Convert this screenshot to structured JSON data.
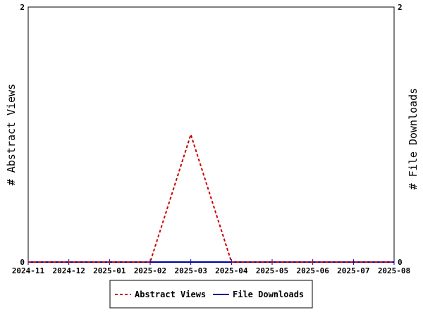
{
  "chart_data": {
    "type": "line",
    "title": "",
    "xlabel": "",
    "ylabel_left": "# Abstract Views",
    "ylabel_right": "# File Downloads",
    "x": [
      "2024-11",
      "2024-12",
      "2025-01",
      "2025-02",
      "2025-03",
      "2025-04",
      "2025-05",
      "2025-06",
      "2025-07",
      "2025-08"
    ],
    "ylim_left": [
      0,
      2
    ],
    "ylim_right": [
      0,
      2
    ],
    "y_ticks_left": [
      "0",
      "2"
    ],
    "y_ticks_right": [
      "0",
      "2"
    ],
    "grid": false,
    "legend_position": "bottom",
    "series": [
      {
        "name": "Abstract Views",
        "axis": "left",
        "color": "#cc0000",
        "style": "dashed",
        "values": [
          0,
          0,
          0,
          0,
          1,
          0,
          0,
          0,
          0,
          0
        ]
      },
      {
        "name": "File Downloads",
        "axis": "right",
        "color": "#000099",
        "style": "solid",
        "values": [
          0,
          0,
          0,
          0,
          0,
          0,
          0,
          0,
          0,
          0
        ]
      }
    ]
  }
}
